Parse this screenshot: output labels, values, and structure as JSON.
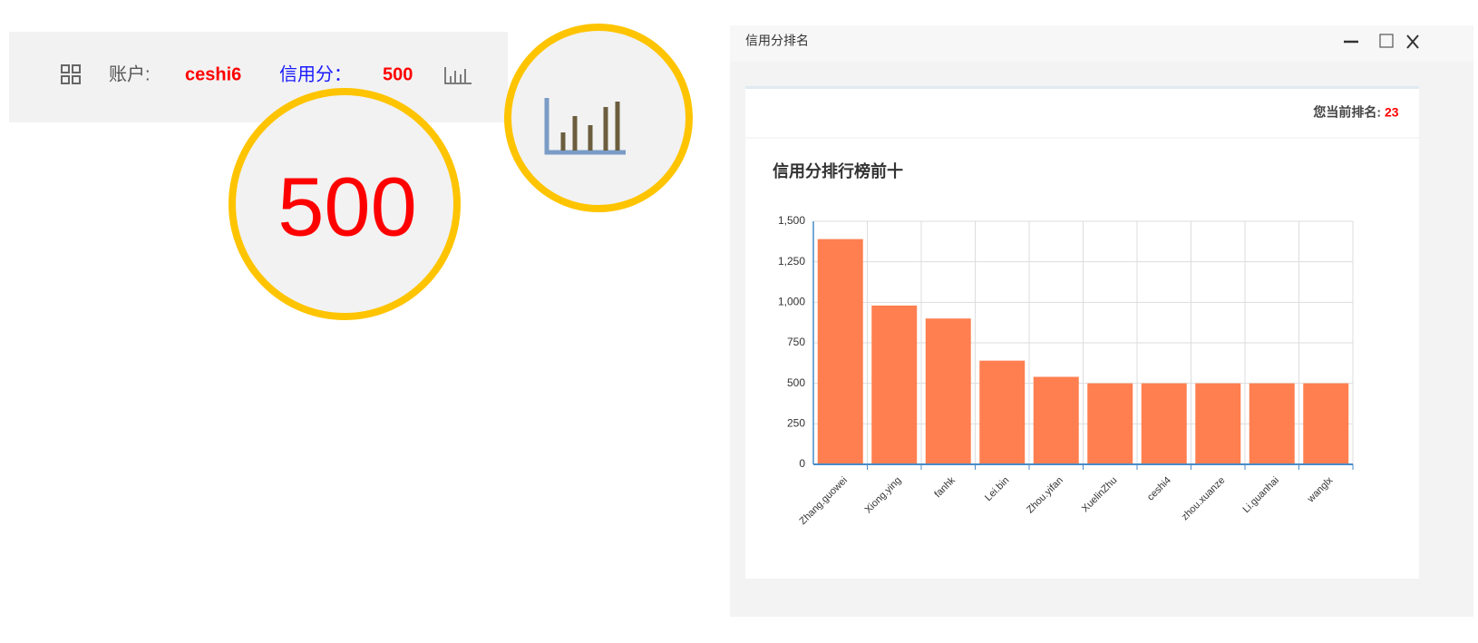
{
  "toolbar": {
    "account_label": "账户:",
    "account": "ceshi6",
    "credit_label": "信用分：",
    "credit": 500
  },
  "window": {
    "title": "信用分排名",
    "rank_label": "您当前排名:",
    "rank": 23
  },
  "chart_data": {
    "type": "bar",
    "title": "信用分排行榜前十",
    "categories": [
      "Zhang.guowei",
      "Xiong.ying",
      "fanhk",
      "Lei.bin",
      "Zhou.yifan",
      "XuelinZhu",
      "ceshi4",
      "zhou.xuanze",
      "Li.guanhai",
      "wanglx"
    ],
    "values": [
      1390,
      980,
      900,
      640,
      540,
      500,
      500,
      500,
      500,
      500
    ],
    "color": "#ff7f50",
    "ylim": [
      0,
      1500
    ],
    "yticks": [
      0,
      250,
      500,
      750,
      {
        "value": 1000,
        "label": "1,000"
      },
      {
        "value": 1250,
        "label": "1,250"
      },
      {
        "value": 1500,
        "label": "1,500"
      }
    ],
    "grid": true
  }
}
